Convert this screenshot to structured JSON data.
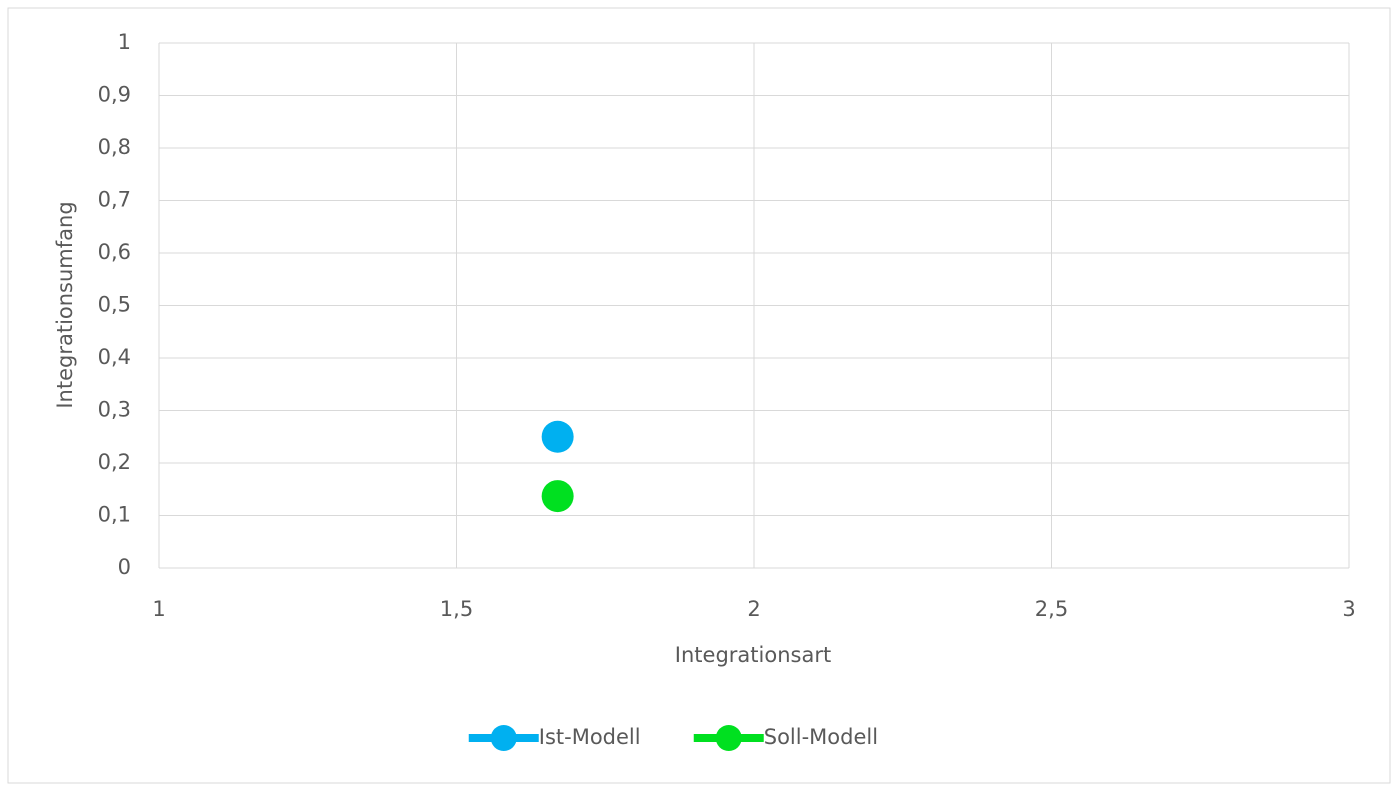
{
  "chart_data": {
    "type": "scatter",
    "xlabel": "Integrationsart",
    "ylabel": "Integrationsumfang",
    "series": [
      {
        "name": "Ist-Modell",
        "color": "#00b0f0",
        "x": [
          1.67
        ],
        "values": [
          0.25
        ]
      },
      {
        "name": "Soll-Modell",
        "color": "#00e020",
        "x": [
          1.67
        ],
        "values": [
          0.137
        ]
      }
    ],
    "xlim": [
      1,
      3
    ],
    "xticks": [
      1,
      {
        "value": 1.5,
        "label": "1,5"
      },
      2,
      {
        "value": 2.5,
        "label": "2,5"
      },
      3
    ],
    "ylim": [
      0,
      1
    ],
    "yticks": [
      0,
      {
        "value": 0.1,
        "label": "0,1"
      },
      {
        "value": 0.2,
        "label": "0,2"
      },
      {
        "value": 0.3,
        "label": "0,3"
      },
      {
        "value": 0.4,
        "label": "0,4"
      },
      {
        "value": 0.5,
        "label": "0,5"
      },
      {
        "value": 0.6,
        "label": "0,6"
      },
      {
        "value": 0.7,
        "label": "0,7"
      },
      {
        "value": 0.8,
        "label": "0,8"
      },
      {
        "value": 0.9,
        "label": "0,9"
      },
      1
    ],
    "grid": true,
    "legend": "bottom"
  }
}
